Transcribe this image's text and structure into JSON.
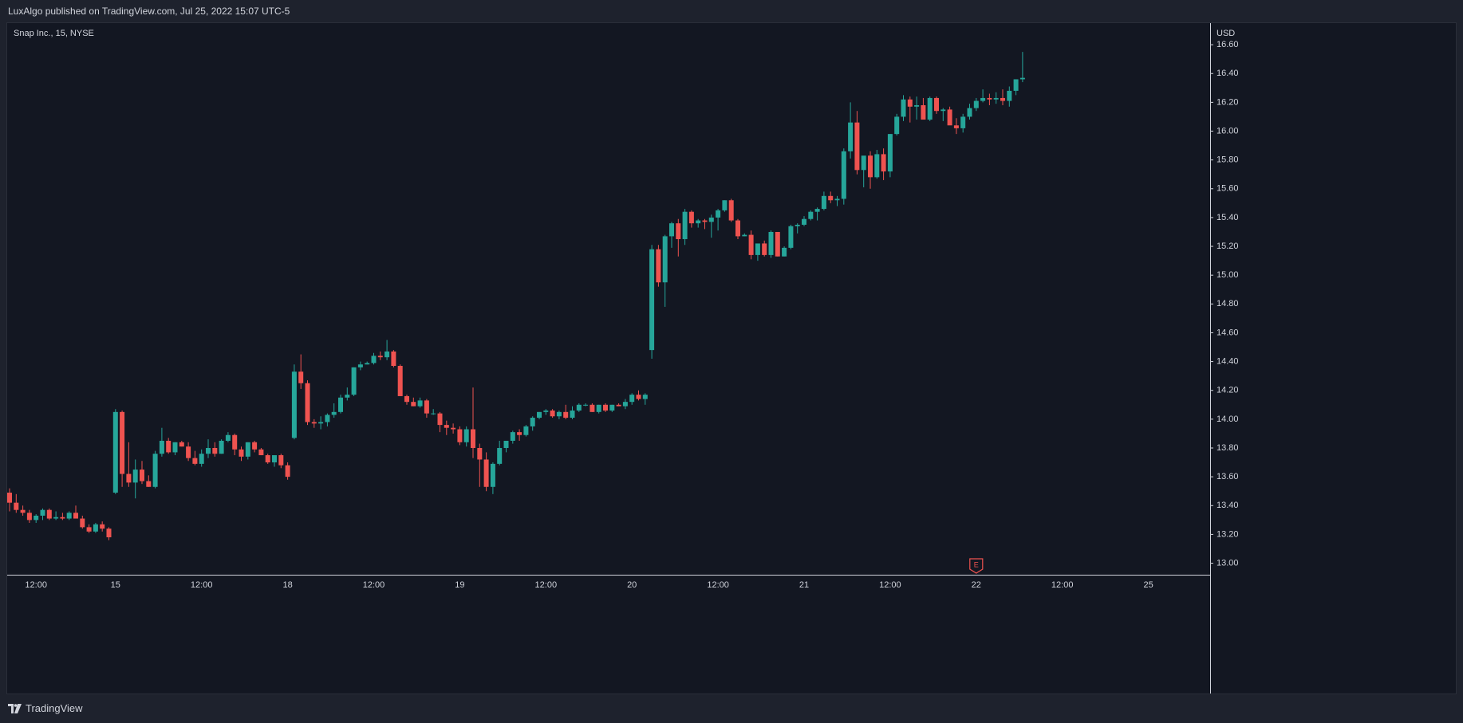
{
  "header": {
    "published_text": "LuxAlgo published on TradingView.com, Jul 25, 2022 15:07 UTC-5"
  },
  "footer": {
    "brand_label": "TradingView",
    "logo_icon": "tradingview-logo-icon"
  },
  "colors": {
    "up": "#26a69a",
    "down": "#ef5350",
    "background": "#131722",
    "text": "#d1d4dc",
    "axis_line": "#d1d4dc"
  },
  "chart_data": {
    "type": "candlestick",
    "symbol_label": "Snap Inc., 15, NYSE",
    "currency": "USD",
    "timeframe": "15",
    "ylim": [
      12.92,
      16.75
    ],
    "y_ticks": [
      "13.00",
      "13.20",
      "13.40",
      "13.60",
      "13.80",
      "14.00",
      "14.20",
      "14.40",
      "14.60",
      "14.80",
      "15.00",
      "15.20",
      "15.40",
      "15.60",
      "15.80",
      "16.00",
      "16.20",
      "16.40",
      "16.60"
    ],
    "x_tick_labels": [
      {
        "label": "12:00",
        "index": 4
      },
      {
        "label": "15",
        "index": 16
      },
      {
        "label": "12:00",
        "index": 29
      },
      {
        "label": "18",
        "index": 42
      },
      {
        "label": "12:00",
        "index": 55
      },
      {
        "label": "19",
        "index": 68
      },
      {
        "label": "12:00",
        "index": 81
      },
      {
        "label": "20",
        "index": 94
      },
      {
        "label": "12:00",
        "index": 107
      },
      {
        "label": "21",
        "index": 120
      },
      {
        "label": "12:00",
        "index": 133
      },
      {
        "label": "22",
        "index": 146
      },
      {
        "label": "12:00",
        "index": 159
      },
      {
        "label": "25",
        "index": 172
      }
    ],
    "earnings_marker": {
      "label": "E",
      "index": 146
    },
    "candles": [
      [
        13.49,
        13.52,
        13.36,
        13.42
      ],
      [
        13.42,
        13.48,
        13.35,
        13.37
      ],
      [
        13.37,
        13.4,
        13.33,
        13.35
      ],
      [
        13.35,
        13.37,
        13.28,
        13.3
      ],
      [
        13.3,
        13.34,
        13.28,
        13.33
      ],
      [
        13.33,
        13.38,
        13.3,
        13.37
      ],
      [
        13.37,
        13.38,
        13.3,
        13.31
      ],
      [
        13.31,
        13.36,
        13.3,
        13.32
      ],
      [
        13.32,
        13.35,
        13.3,
        13.31
      ],
      [
        13.31,
        13.36,
        13.3,
        13.35
      ],
      [
        13.35,
        13.4,
        13.31,
        13.31
      ],
      [
        13.31,
        13.33,
        13.24,
        13.25
      ],
      [
        13.25,
        13.27,
        13.21,
        13.22
      ],
      [
        13.22,
        13.28,
        13.21,
        13.27
      ],
      [
        13.27,
        13.29,
        13.22,
        13.24
      ],
      [
        13.24,
        13.25,
        13.16,
        13.18
      ],
      [
        13.49,
        14.07,
        13.48,
        14.05
      ],
      [
        14.05,
        14.06,
        13.53,
        13.62
      ],
      [
        13.62,
        13.84,
        13.53,
        13.56
      ],
      [
        13.56,
        13.72,
        13.45,
        13.65
      ],
      [
        13.65,
        13.71,
        13.55,
        13.57
      ],
      [
        13.57,
        13.61,
        13.53,
        13.53
      ],
      [
        13.53,
        13.78,
        13.52,
        13.76
      ],
      [
        13.76,
        13.94,
        13.74,
        13.85
      ],
      [
        13.85,
        13.87,
        13.76,
        13.77
      ],
      [
        13.77,
        13.84,
        13.75,
        13.84
      ],
      [
        13.84,
        13.85,
        13.81,
        13.81
      ],
      [
        13.81,
        13.84,
        13.71,
        13.73
      ],
      [
        13.73,
        13.78,
        13.68,
        13.69
      ],
      [
        13.69,
        13.79,
        13.67,
        13.76
      ],
      [
        13.76,
        13.86,
        13.73,
        13.8
      ],
      [
        13.8,
        13.84,
        13.74,
        13.76
      ],
      [
        13.76,
        13.86,
        13.76,
        13.85
      ],
      [
        13.85,
        13.91,
        13.84,
        13.89
      ],
      [
        13.89,
        13.9,
        13.75,
        13.79
      ],
      [
        13.79,
        13.81,
        13.71,
        13.74
      ],
      [
        13.74,
        13.84,
        13.72,
        13.84
      ],
      [
        13.84,
        13.85,
        13.77,
        13.79
      ],
      [
        13.79,
        13.8,
        13.75,
        13.75
      ],
      [
        13.75,
        13.76,
        13.69,
        13.7
      ],
      [
        13.7,
        13.73,
        13.67,
        13.75
      ],
      [
        13.75,
        13.76,
        13.66,
        13.68
      ],
      [
        13.68,
        13.7,
        13.58,
        13.6
      ],
      [
        13.87,
        14.38,
        13.86,
        14.33
      ],
      [
        14.33,
        14.45,
        14.21,
        14.25
      ],
      [
        14.25,
        14.27,
        13.96,
        13.98
      ],
      [
        13.98,
        14.0,
        13.94,
        13.97
      ],
      [
        13.97,
        14.02,
        13.93,
        13.98
      ],
      [
        13.98,
        14.04,
        13.95,
        14.03
      ],
      [
        14.03,
        14.11,
        14.01,
        14.05
      ],
      [
        14.05,
        14.17,
        14.04,
        14.15
      ],
      [
        14.15,
        14.22,
        14.13,
        14.17
      ],
      [
        14.17,
        14.36,
        14.16,
        14.36
      ],
      [
        14.36,
        14.4,
        14.34,
        14.38
      ],
      [
        14.38,
        14.4,
        14.38,
        14.39
      ],
      [
        14.39,
        14.46,
        14.38,
        14.44
      ],
      [
        14.44,
        14.47,
        14.41,
        14.43
      ],
      [
        14.43,
        14.55,
        14.41,
        14.47
      ],
      [
        14.47,
        14.48,
        14.36,
        14.37
      ],
      [
        14.37,
        14.38,
        14.16,
        14.16
      ],
      [
        14.16,
        14.17,
        14.1,
        14.12
      ],
      [
        14.12,
        14.15,
        14.09,
        14.09
      ],
      [
        14.09,
        14.15,
        14.08,
        14.13
      ],
      [
        14.13,
        14.14,
        14.01,
        14.04
      ],
      [
        14.04,
        14.07,
        14.03,
        14.04
      ],
      [
        14.04,
        14.05,
        13.91,
        13.96
      ],
      [
        13.96,
        13.99,
        13.89,
        13.94
      ],
      [
        13.94,
        13.97,
        13.9,
        13.93
      ],
      [
        13.93,
        13.95,
        13.82,
        13.84
      ],
      [
        13.84,
        13.95,
        13.81,
        13.93
      ],
      [
        13.93,
        14.22,
        13.73,
        13.8
      ],
      [
        13.8,
        13.83,
        13.53,
        13.72
      ],
      [
        13.72,
        13.77,
        13.5,
        13.53
      ],
      [
        13.53,
        13.7,
        13.48,
        13.69
      ],
      [
        13.69,
        13.85,
        13.68,
        13.8
      ],
      [
        13.8,
        13.85,
        13.77,
        13.85
      ],
      [
        13.85,
        13.92,
        13.83,
        13.91
      ],
      [
        13.91,
        13.93,
        13.85,
        13.89
      ],
      [
        13.89,
        13.96,
        13.88,
        13.95
      ],
      [
        13.95,
        14.02,
        13.92,
        14.01
      ],
      [
        14.01,
        14.05,
        14.0,
        14.05
      ],
      [
        14.05,
        14.07,
        14.03,
        14.06
      ],
      [
        14.06,
        14.07,
        14.01,
        14.02
      ],
      [
        14.02,
        14.06,
        14.0,
        14.05
      ],
      [
        14.05,
        14.1,
        14.0,
        14.01
      ],
      [
        14.01,
        14.09,
        14.0,
        14.06
      ],
      [
        14.06,
        14.11,
        14.05,
        14.1
      ],
      [
        14.1,
        14.11,
        14.09,
        14.1
      ],
      [
        14.1,
        14.11,
        14.05,
        14.05
      ],
      [
        14.05,
        14.1,
        14.04,
        14.1
      ],
      [
        14.1,
        14.11,
        14.05,
        14.06
      ],
      [
        14.06,
        14.1,
        14.05,
        14.1
      ],
      [
        14.1,
        14.11,
        14.09,
        14.09
      ],
      [
        14.09,
        14.14,
        14.07,
        14.12
      ],
      [
        14.12,
        14.18,
        14.1,
        14.17
      ],
      [
        14.17,
        14.2,
        14.13,
        14.14
      ],
      [
        14.14,
        14.18,
        14.1,
        14.17
      ],
      [
        14.48,
        15.21,
        14.42,
        15.18
      ],
      [
        15.18,
        15.21,
        14.92,
        14.95
      ],
      [
        14.95,
        15.28,
        14.78,
        15.27
      ],
      [
        15.27,
        15.37,
        15.19,
        15.36
      ],
      [
        15.36,
        15.39,
        15.13,
        15.25
      ],
      [
        15.25,
        15.46,
        15.21,
        15.44
      ],
      [
        15.44,
        15.45,
        15.33,
        15.36
      ],
      [
        15.36,
        15.39,
        15.33,
        15.38
      ],
      [
        15.38,
        15.39,
        15.32,
        15.37
      ],
      [
        15.37,
        15.42,
        15.26,
        15.4
      ],
      [
        15.4,
        15.46,
        15.31,
        15.45
      ],
      [
        15.45,
        15.52,
        15.44,
        15.52
      ],
      [
        15.52,
        15.53,
        15.37,
        15.38
      ],
      [
        15.38,
        15.39,
        15.25,
        15.27
      ],
      [
        15.27,
        15.29,
        15.27,
        15.28
      ],
      [
        15.28,
        15.31,
        15.11,
        15.14
      ],
      [
        15.14,
        15.19,
        15.1,
        15.22
      ],
      [
        15.22,
        15.24,
        15.13,
        15.14
      ],
      [
        15.14,
        15.31,
        15.12,
        15.3
      ],
      [
        15.3,
        15.3,
        15.13,
        15.13
      ],
      [
        15.13,
        15.2,
        15.13,
        15.19
      ],
      [
        15.19,
        15.35,
        15.18,
        15.34
      ],
      [
        15.34,
        15.36,
        15.29,
        15.35
      ],
      [
        15.35,
        15.41,
        15.34,
        15.39
      ],
      [
        15.39,
        15.45,
        15.38,
        15.44
      ],
      [
        15.44,
        15.47,
        15.38,
        15.46
      ],
      [
        15.46,
        15.58,
        15.45,
        15.55
      ],
      [
        15.55,
        15.58,
        15.5,
        15.52
      ],
      [
        15.52,
        15.55,
        15.48,
        15.53
      ],
      [
        15.53,
        15.88,
        15.49,
        15.86
      ],
      [
        15.86,
        16.2,
        15.81,
        16.06
      ],
      [
        16.06,
        16.14,
        15.7,
        15.73
      ],
      [
        15.73,
        15.82,
        15.61,
        15.83
      ],
      [
        15.83,
        15.86,
        15.6,
        15.68
      ],
      [
        15.68,
        15.87,
        15.67,
        15.84
      ],
      [
        15.84,
        15.88,
        15.66,
        15.72
      ],
      [
        15.72,
        15.98,
        15.68,
        15.98
      ],
      [
        15.98,
        16.12,
        15.97,
        16.1
      ],
      [
        16.1,
        16.25,
        16.07,
        16.22
      ],
      [
        16.22,
        16.24,
        16.06,
        16.17
      ],
      [
        16.17,
        16.24,
        16.08,
        16.18
      ],
      [
        16.18,
        16.23,
        16.09,
        16.08
      ],
      [
        16.08,
        16.24,
        16.07,
        16.23
      ],
      [
        16.23,
        16.24,
        16.12,
        16.14
      ],
      [
        16.14,
        16.16,
        16.07,
        16.15
      ],
      [
        16.15,
        16.17,
        16.05,
        16.04
      ],
      [
        16.04,
        16.09,
        15.98,
        16.02
      ],
      [
        16.02,
        16.12,
        15.99,
        16.1
      ],
      [
        16.1,
        16.19,
        16.08,
        16.16
      ],
      [
        16.16,
        16.23,
        16.14,
        16.21
      ],
      [
        16.21,
        16.29,
        16.2,
        16.23
      ],
      [
        16.23,
        16.26,
        16.18,
        16.22
      ],
      [
        16.22,
        16.27,
        16.19,
        16.23
      ],
      [
        16.23,
        16.29,
        16.18,
        16.21
      ],
      [
        16.21,
        16.31,
        16.17,
        16.28
      ],
      [
        16.28,
        16.36,
        16.25,
        16.36
      ],
      [
        16.36,
        16.55,
        16.34,
        16.37
      ]
    ]
  }
}
